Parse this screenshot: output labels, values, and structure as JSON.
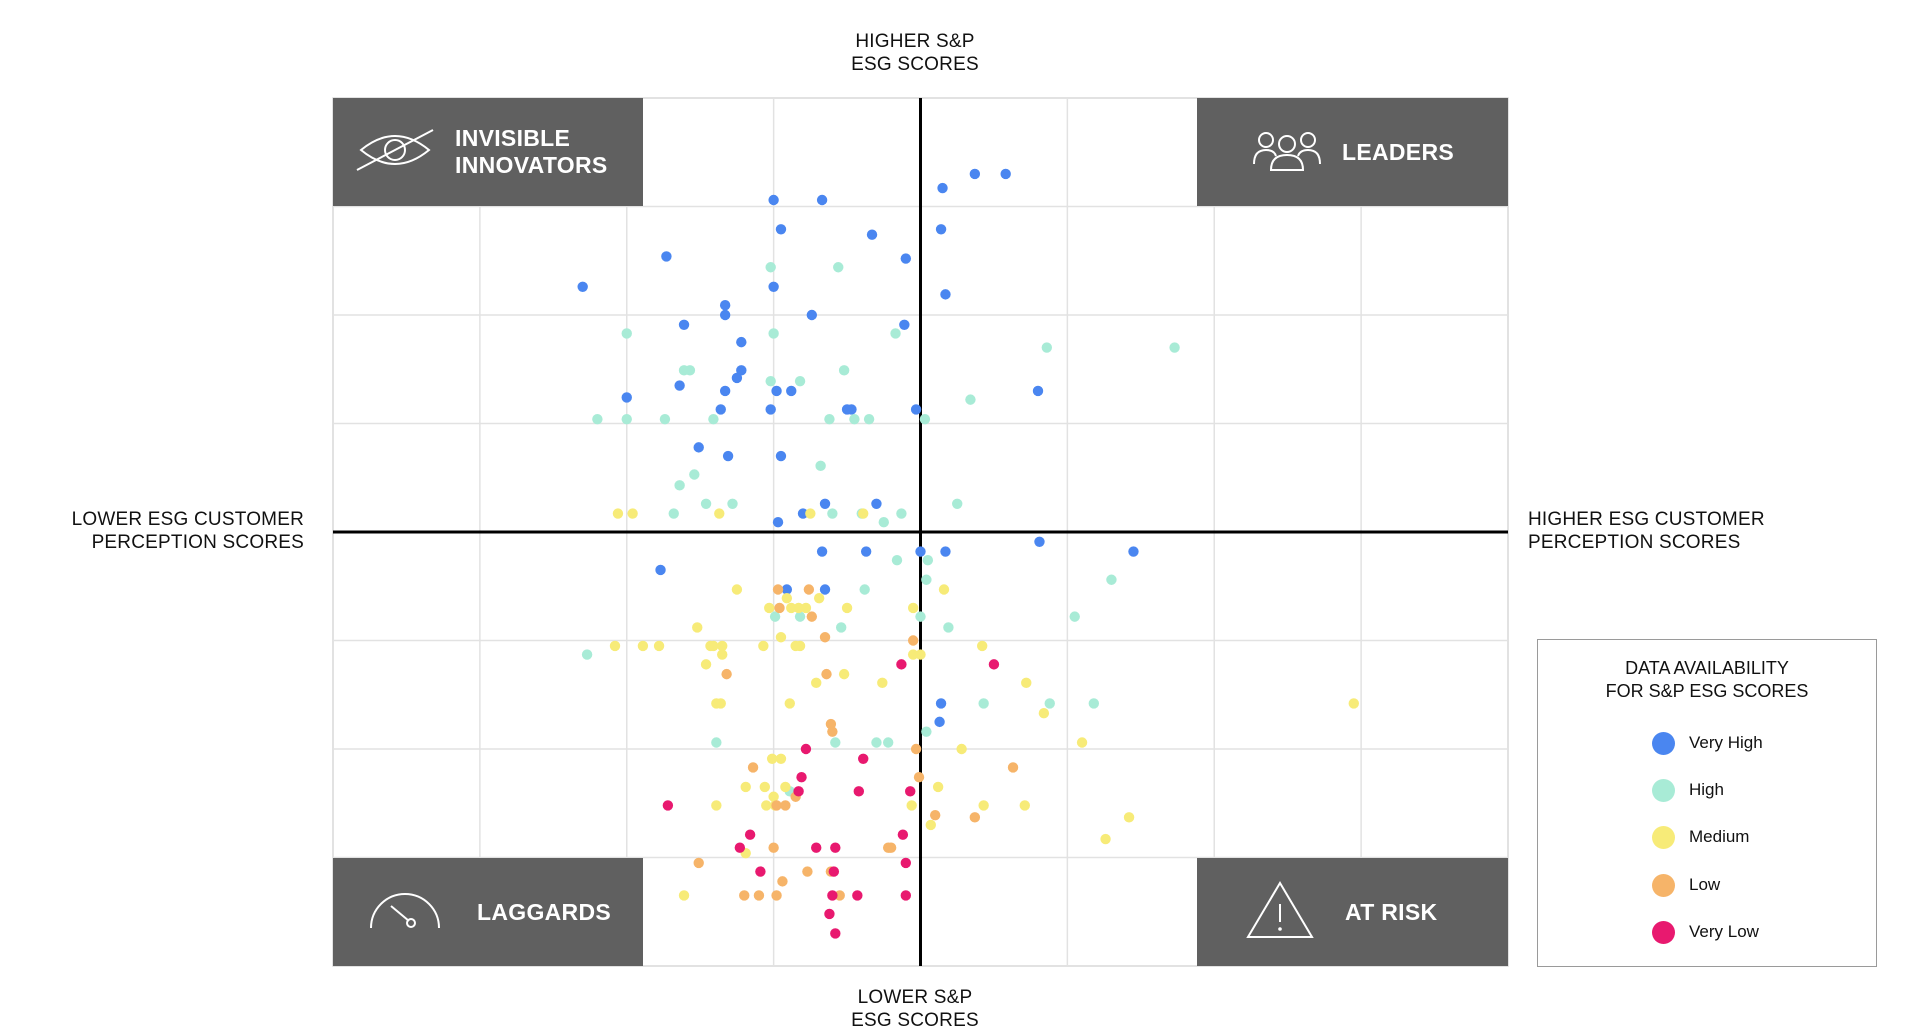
{
  "chart_data": {
    "type": "scatter",
    "axes": {
      "top_label": [
        "HIGHER S&P",
        "ESG SCORES"
      ],
      "bottom_label": [
        "LOWER S&P",
        "ESG SCORES"
      ],
      "left_label": [
        "LOWER ESG CUSTOMER",
        "PERCEPTION SCORES"
      ],
      "right_label": [
        "HIGHER ESG CUSTOMER",
        "PERCEPTION SCORES"
      ],
      "x_range": [
        -4,
        4
      ],
      "y_range": [
        -4,
        4
      ],
      "grid": true,
      "tick_labels": false
    },
    "quadrants": [
      {
        "key": "invisible",
        "label": [
          "INVISIBLE",
          "INNOVATORS"
        ],
        "icon": "eye-slash-icon",
        "position": "top-left"
      },
      {
        "key": "leaders",
        "label": [
          "LEADERS"
        ],
        "icon": "people-icon",
        "position": "top-right"
      },
      {
        "key": "laggards",
        "label": [
          "LAGGARDS"
        ],
        "icon": "gauge-icon",
        "position": "bottom-left"
      },
      {
        "key": "atrisk",
        "label": [
          "AT RISK"
        ],
        "icon": "warning-icon",
        "position": "bottom-right"
      }
    ],
    "legend": {
      "title": [
        "DATA AVAILABILITY",
        "FOR S&P ESG SCORES"
      ],
      "placement": "bottom-right"
    },
    "series": [
      {
        "name": "Very High",
        "color": "#4A86F0",
        "points": [
          [
            0.37,
            3.3
          ],
          [
            0.58,
            3.3
          ],
          [
            0.15,
            3.17
          ],
          [
            -1.0,
            3.06
          ],
          [
            -0.67,
            3.06
          ],
          [
            -0.95,
            2.79
          ],
          [
            0.14,
            2.79
          ],
          [
            -0.33,
            2.74
          ],
          [
            -1.73,
            2.54
          ],
          [
            -0.1,
            2.52
          ],
          [
            -1.0,
            2.26
          ],
          [
            -2.3,
            2.26
          ],
          [
            0.17,
            2.19
          ],
          [
            -1.33,
            2.09
          ],
          [
            -1.33,
            2.0
          ],
          [
            -0.74,
            2.0
          ],
          [
            -1.61,
            1.91
          ],
          [
            -0.11,
            1.91
          ],
          [
            -1.22,
            1.75
          ],
          [
            -1.22,
            1.49
          ],
          [
            -1.25,
            1.42
          ],
          [
            -1.64,
            1.35
          ],
          [
            -0.98,
            1.3
          ],
          [
            -0.88,
            1.3
          ],
          [
            0.8,
            1.3
          ],
          [
            -1.33,
            1.3
          ],
          [
            -2.0,
            1.24
          ],
          [
            -1.36,
            1.13
          ],
          [
            -1.02,
            1.13
          ],
          [
            -0.5,
            1.13
          ],
          [
            -0.47,
            1.13
          ],
          [
            -0.03,
            1.13
          ],
          [
            -1.51,
            0.78
          ],
          [
            -1.31,
            0.7
          ],
          [
            -0.95,
            0.7
          ],
          [
            -0.65,
            0.26
          ],
          [
            -0.3,
            0.26
          ],
          [
            -0.8,
            0.17
          ],
          [
            -0.97,
            0.09
          ],
          [
            0.81,
            -0.09
          ],
          [
            1.45,
            -0.18
          ],
          [
            -0.67,
            -0.18
          ],
          [
            -0.37,
            -0.18
          ],
          [
            0.0,
            -0.18
          ],
          [
            0.17,
            -0.18
          ],
          [
            -1.77,
            -0.35
          ],
          [
            -0.91,
            -0.53
          ],
          [
            -0.65,
            -0.53
          ],
          [
            0.14,
            -1.58
          ],
          [
            0.13,
            -1.75
          ]
        ]
      },
      {
        "name": "High",
        "color": "#A8EBD6",
        "points": [
          [
            -1.02,
            2.44
          ],
          [
            -0.56,
            2.44
          ],
          [
            -2.0,
            1.83
          ],
          [
            -1.0,
            1.83
          ],
          [
            -0.17,
            1.83
          ],
          [
            1.73,
            1.7
          ],
          [
            0.86,
            1.7
          ],
          [
            -1.57,
            1.49
          ],
          [
            -1.61,
            1.49
          ],
          [
            -0.52,
            1.49
          ],
          [
            -1.02,
            1.39
          ],
          [
            -0.82,
            1.39
          ],
          [
            0.34,
            1.22
          ],
          [
            -2.2,
            1.04
          ],
          [
            -2.0,
            1.04
          ],
          [
            -1.74,
            1.04
          ],
          [
            -1.41,
            1.04
          ],
          [
            -0.62,
            1.04
          ],
          [
            -0.45,
            1.04
          ],
          [
            -0.35,
            1.04
          ],
          [
            0.03,
            1.04
          ],
          [
            -0.68,
            0.61
          ],
          [
            -1.54,
            0.53
          ],
          [
            -1.64,
            0.43
          ],
          [
            -1.46,
            0.26
          ],
          [
            -1.28,
            0.26
          ],
          [
            -1.68,
            0.17
          ],
          [
            -0.4,
            0.17
          ],
          [
            -0.6,
            0.17
          ],
          [
            -0.13,
            0.17
          ],
          [
            0.25,
            0.26
          ],
          [
            -0.25,
            0.09
          ],
          [
            -0.16,
            -0.26
          ],
          [
            0.05,
            -0.26
          ],
          [
            0.04,
            -0.44
          ],
          [
            1.3,
            -0.44
          ],
          [
            -0.38,
            -0.53
          ],
          [
            1.05,
            -0.78
          ],
          [
            -0.99,
            -0.78
          ],
          [
            -0.82,
            -0.78
          ],
          [
            0.0,
            -0.78
          ],
          [
            -0.54,
            -0.88
          ],
          [
            0.19,
            -0.88
          ],
          [
            -2.27,
            -1.13
          ],
          [
            0.88,
            -1.58
          ],
          [
            1.18,
            -1.58
          ],
          [
            0.43,
            -1.58
          ],
          [
            -1.39,
            -1.94
          ],
          [
            -0.58,
            -1.94
          ],
          [
            -0.3,
            -1.94
          ],
          [
            -0.22,
            -1.94
          ],
          [
            0.04,
            -1.84
          ],
          [
            -0.89,
            -2.39
          ]
        ]
      },
      {
        "name": "Medium",
        "color": "#F7EB78",
        "points": [
          [
            -2.06,
            0.17
          ],
          [
            -1.96,
            0.17
          ],
          [
            -1.37,
            0.17
          ],
          [
            -0.39,
            0.17
          ],
          [
            -0.75,
            0.17
          ],
          [
            -1.25,
            -0.53
          ],
          [
            -0.91,
            -0.61
          ],
          [
            -1.03,
            -0.7
          ],
          [
            -0.83,
            -0.7
          ],
          [
            -0.69,
            -0.61
          ],
          [
            -0.78,
            -0.7
          ],
          [
            -0.5,
            -0.7
          ],
          [
            -0.88,
            -0.7
          ],
          [
            0.16,
            -0.53
          ],
          [
            -0.05,
            -0.7
          ],
          [
            -1.52,
            -0.88
          ],
          [
            -0.95,
            -0.97
          ],
          [
            -2.08,
            -1.05
          ],
          [
            -1.89,
            -1.05
          ],
          [
            -1.78,
            -1.05
          ],
          [
            -1.43,
            -1.05
          ],
          [
            -1.41,
            -1.05
          ],
          [
            -1.35,
            -1.05
          ],
          [
            -1.07,
            -1.05
          ],
          [
            -0.82,
            -1.05
          ],
          [
            -0.85,
            -1.05
          ],
          [
            0.0,
            -1.13
          ],
          [
            -0.05,
            -1.13
          ],
          [
            -1.46,
            -1.22
          ],
          [
            -1.35,
            -1.13
          ],
          [
            0.42,
            -1.05
          ],
          [
            -0.71,
            -1.39
          ],
          [
            -0.52,
            -1.31
          ],
          [
            -0.26,
            -1.39
          ],
          [
            -1.39,
            -1.58
          ],
          [
            -1.36,
            -1.58
          ],
          [
            -0.89,
            -1.58
          ],
          [
            0.72,
            -1.39
          ],
          [
            0.84,
            -1.67
          ],
          [
            1.1,
            -1.94
          ],
          [
            -1.01,
            -2.09
          ],
          [
            -0.95,
            -2.09
          ],
          [
            0.28,
            -2.0
          ],
          [
            -1.19,
            -2.35
          ],
          [
            -1.06,
            -2.35
          ],
          [
            -0.92,
            -2.35
          ],
          [
            -1.0,
            -2.44
          ],
          [
            -0.99,
            -2.52
          ],
          [
            -1.05,
            -2.52
          ],
          [
            -1.39,
            -2.52
          ],
          [
            0.12,
            -2.35
          ],
          [
            -0.06,
            -2.52
          ],
          [
            0.71,
            -2.52
          ],
          [
            0.43,
            -2.52
          ],
          [
            1.42,
            -2.63
          ],
          [
            0.07,
            -2.7
          ],
          [
            1.26,
            -2.83
          ],
          [
            -1.19,
            -2.96
          ],
          [
            -1.61,
            -3.35
          ],
          [
            2.95,
            -1.58
          ]
        ]
      },
      {
        "name": "Low",
        "color": "#F6B469",
        "points": [
          [
            -0.97,
            -0.53
          ],
          [
            -0.76,
            -0.53
          ],
          [
            -0.74,
            -0.78
          ],
          [
            -0.96,
            -0.7
          ],
          [
            -0.65,
            -0.97
          ],
          [
            -1.32,
            -1.31
          ],
          [
            -0.64,
            -1.31
          ],
          [
            -0.05,
            -1.0
          ],
          [
            -0.61,
            -1.77
          ],
          [
            -0.6,
            -1.84
          ],
          [
            -0.03,
            -2.0
          ],
          [
            -1.14,
            -2.17
          ],
          [
            0.63,
            -2.17
          ],
          [
            -0.01,
            -2.26
          ],
          [
            -0.85,
            -2.44
          ],
          [
            0.1,
            -2.61
          ],
          [
            -0.98,
            -2.52
          ],
          [
            -0.92,
            -2.52
          ],
          [
            0.37,
            -2.63
          ],
          [
            -1.0,
            -2.91
          ],
          [
            -0.2,
            -2.91
          ],
          [
            -0.22,
            -2.91
          ],
          [
            -1.51,
            -3.05
          ],
          [
            -0.77,
            -3.13
          ],
          [
            -0.61,
            -3.13
          ],
          [
            -0.94,
            -3.22
          ],
          [
            -1.2,
            -3.35
          ],
          [
            -1.1,
            -3.35
          ],
          [
            -0.98,
            -3.35
          ],
          [
            -0.55,
            -3.35
          ]
        ]
      },
      {
        "name": "Very Low",
        "color": "#E8196F",
        "points": [
          [
            0.5,
            -1.22
          ],
          [
            -0.13,
            -1.22
          ],
          [
            -0.78,
            -2.0
          ],
          [
            -0.39,
            -2.09
          ],
          [
            -0.81,
            -2.26
          ],
          [
            -0.42,
            -2.39
          ],
          [
            -0.07,
            -2.39
          ],
          [
            -1.72,
            -2.52
          ],
          [
            -0.83,
            -2.39
          ],
          [
            -1.16,
            -2.79
          ],
          [
            -1.23,
            -2.91
          ],
          [
            -0.71,
            -2.91
          ],
          [
            -0.58,
            -2.91
          ],
          [
            -0.12,
            -2.79
          ],
          [
            -0.1,
            -3.05
          ],
          [
            -1.09,
            -3.13
          ],
          [
            -0.59,
            -3.13
          ],
          [
            -0.6,
            -3.35
          ],
          [
            -0.43,
            -3.35
          ],
          [
            -0.1,
            -3.35
          ],
          [
            -0.62,
            -3.52
          ],
          [
            -0.58,
            -3.7
          ]
        ]
      }
    ]
  }
}
